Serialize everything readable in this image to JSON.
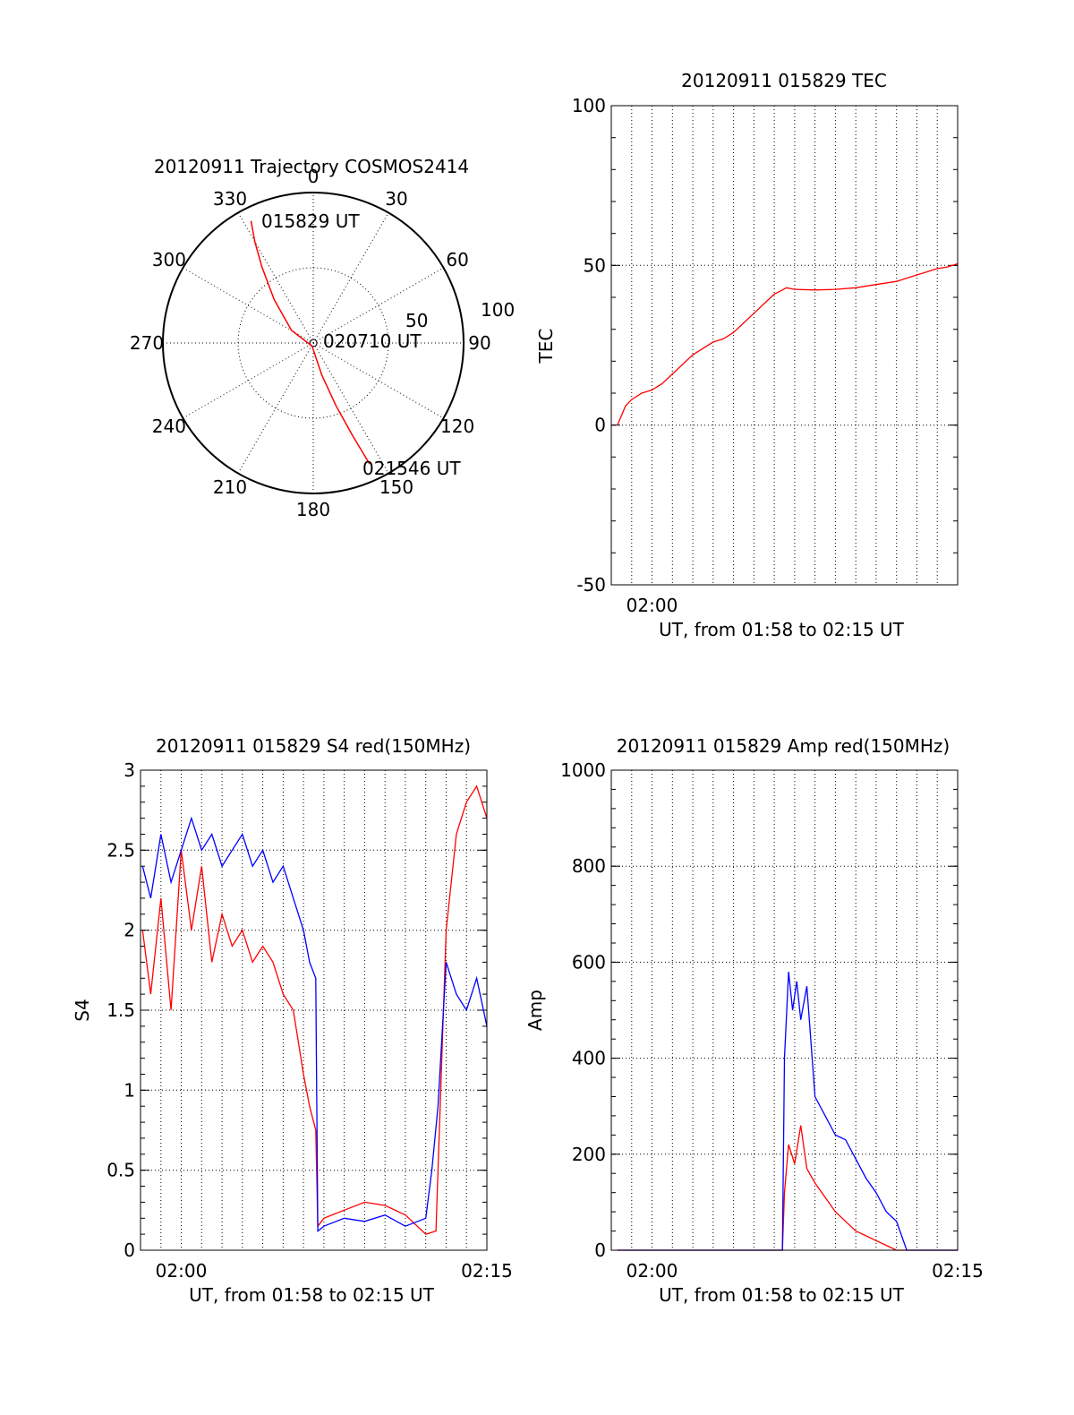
{
  "chart_data": [
    {
      "type": "polar",
      "title": "20120911 Trajectory COSMOS2414",
      "azimuth_labels": [
        "0",
        "30",
        "60",
        "90",
        "120",
        "150",
        "180",
        "210",
        "240",
        "270",
        "300",
        "330"
      ],
      "radial_labels": [
        "50",
        "100"
      ],
      "start_label": "015829 UT",
      "mid_label": "020710 UT",
      "end_label": "021546 UT",
      "trajectory": [
        {
          "az": 333,
          "el": 8
        },
        {
          "az": 330,
          "el": 20
        },
        {
          "az": 326,
          "el": 35
        },
        {
          "az": 318,
          "el": 55
        },
        {
          "az": 300,
          "el": 75
        },
        {
          "az": 200,
          "el": 88
        },
        {
          "az": 165,
          "el": 70
        },
        {
          "az": 160,
          "el": 50
        },
        {
          "az": 157,
          "el": 30
        },
        {
          "az": 155,
          "el": 10
        }
      ],
      "line_color": "#ff0000"
    },
    {
      "type": "line",
      "title": "20120911 015829 TEC",
      "xlabel": "UT, from 01:58 to 02:15 UT",
      "ylabel": "TEC",
      "xlim": [
        0,
        17
      ],
      "ylim": [
        -50,
        100
      ],
      "yticks": [
        -50,
        0,
        50,
        100
      ],
      "xticks": [
        {
          "x": 2,
          "label": "02:00"
        }
      ],
      "series": [
        {
          "color": "#ff0000",
          "x": [
            0.3,
            0.5,
            0.7,
            1.0,
            1.5,
            2.0,
            2.5,
            3.0,
            3.5,
            4.0,
            4.5,
            5.0,
            5.5,
            6.0,
            6.5,
            7.0,
            7.5,
            8.0,
            8.3,
            8.6,
            9.0,
            10.0,
            11.0,
            12.0,
            13.0,
            14.0,
            14.5,
            15.0,
            15.5,
            16.0,
            16.5,
            17.0
          ],
          "y": [
            0,
            3,
            6,
            8,
            10,
            11,
            13,
            16,
            19,
            22,
            24,
            26,
            27,
            29,
            32,
            35,
            38,
            41,
            42,
            43,
            42.5,
            42.3,
            42.5,
            43,
            44,
            45,
            46,
            47,
            48,
            49,
            49.5,
            50.5
          ]
        }
      ]
    },
    {
      "type": "line",
      "title": "20120911 015829 S4 red(150MHz)",
      "xlabel": "UT, from 01:58 to 02:15 UT",
      "ylabel": "S4",
      "xlim": [
        0,
        17
      ],
      "ylim": [
        0,
        3
      ],
      "yticks": [
        0,
        0.5,
        1,
        1.5,
        2,
        2.5,
        3
      ],
      "ytick_labels": [
        "0",
        "0.5",
        "1",
        "1.5",
        "2",
        "2.5",
        "3"
      ],
      "xticks": [
        {
          "x": 2,
          "label": "02:00"
        },
        {
          "x": 17,
          "label": "02:15"
        }
      ],
      "series": [
        {
          "color": "#ff0000",
          "x": [
            0.1,
            0.5,
            1.0,
            1.5,
            2.0,
            2.5,
            3.0,
            3.5,
            4.0,
            4.5,
            5.0,
            5.5,
            6.0,
            6.5,
            7.0,
            7.5,
            8.0,
            8.3,
            8.6,
            8.7,
            9.0,
            10.0,
            11.0,
            12.0,
            13.0,
            14.0,
            14.5,
            15.0,
            15.5,
            16.0,
            16.5,
            17.0
          ],
          "y": [
            2.0,
            1.6,
            2.2,
            1.5,
            2.5,
            2.0,
            2.4,
            1.8,
            2.1,
            1.9,
            2.0,
            1.8,
            1.9,
            1.8,
            1.6,
            1.5,
            1.1,
            0.9,
            0.75,
            0.15,
            0.2,
            0.25,
            0.3,
            0.28,
            0.22,
            0.1,
            0.12,
            2.0,
            2.6,
            2.8,
            2.9,
            2.7
          ]
        },
        {
          "color": "#0000ff",
          "x": [
            0.1,
            0.5,
            1.0,
            1.5,
            2.0,
            2.5,
            3.0,
            3.5,
            4.0,
            4.5,
            5.0,
            5.5,
            6.0,
            6.5,
            7.0,
            7.5,
            8.0,
            8.3,
            8.6,
            8.7,
            9.0,
            10.0,
            11.0,
            12.0,
            13.0,
            14.0,
            14.3,
            14.6,
            15.0,
            15.5,
            16.0,
            16.5,
            17.0
          ],
          "y": [
            2.4,
            2.2,
            2.6,
            2.3,
            2.5,
            2.7,
            2.5,
            2.6,
            2.4,
            2.5,
            2.6,
            2.4,
            2.5,
            2.3,
            2.4,
            2.2,
            2.0,
            1.8,
            1.7,
            0.12,
            0.15,
            0.2,
            0.18,
            0.22,
            0.15,
            0.2,
            0.5,
            0.9,
            1.8,
            1.6,
            1.5,
            1.7,
            1.4
          ]
        }
      ]
    },
    {
      "type": "line",
      "title": "20120911 015829 Amp red(150MHz)",
      "xlabel": "UT, from 01:58 to 02:15 UT",
      "ylabel": "Amp",
      "xlim": [
        0,
        17
      ],
      "ylim": [
        0,
        1000
      ],
      "yticks": [
        0,
        200,
        400,
        600,
        800,
        1000
      ],
      "ytick_labels": [
        "0",
        "200",
        "400",
        "600",
        "800",
        "1000"
      ],
      "xticks": [
        {
          "x": 2,
          "label": "02:00"
        },
        {
          "x": 17,
          "label": "02:15"
        }
      ],
      "series": [
        {
          "color": "#ff0000",
          "x": [
            0.3,
            8.4,
            8.5,
            8.7,
            9.0,
            9.3,
            9.6,
            10.0,
            10.5,
            11.0,
            11.5,
            12.0,
            12.5,
            13.0,
            13.5,
            14.0,
            17.0
          ],
          "y": [
            0,
            0,
            120,
            220,
            180,
            260,
            170,
            140,
            110,
            80,
            60,
            40,
            30,
            20,
            10,
            0,
            0
          ]
        },
        {
          "color": "#0000ff",
          "x": [
            0.3,
            8.4,
            8.5,
            8.7,
            8.9,
            9.1,
            9.3,
            9.6,
            10.0,
            10.5,
            11.0,
            11.5,
            12.0,
            12.5,
            13.0,
            13.5,
            14.0,
            14.5,
            15.0,
            17.0
          ],
          "y": [
            0,
            0,
            400,
            580,
            500,
            560,
            480,
            550,
            320,
            280,
            240,
            230,
            190,
            150,
            120,
            80,
            60,
            0,
            0,
            0
          ]
        }
      ]
    }
  ]
}
